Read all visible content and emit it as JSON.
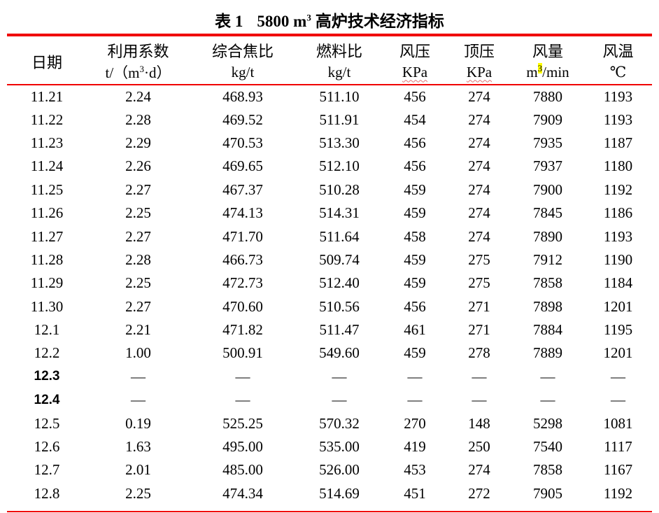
{
  "colors": {
    "rule": "#f00000",
    "highlight": "#ffff00",
    "squiggle": "#e36f6f"
  },
  "title": {
    "label": "表 1",
    "pre": "5800 m",
    "sup": "3",
    "post": "高炉技术经济指标"
  },
  "header": {
    "date": "日期",
    "cols": [
      {
        "name": "利用系数",
        "unit_pre": "t/（m",
        "unit_sup": "3",
        "unit_post": "·d）"
      },
      {
        "name": "综合焦比",
        "unit": "kg/t"
      },
      {
        "name": "燃料比",
        "unit": "kg/t"
      },
      {
        "name": "风压",
        "unit": "KPa",
        "misspelled": true
      },
      {
        "name": "顶压",
        "unit": "KPa",
        "misspelled": true
      },
      {
        "name": "风量",
        "unit_pre": "m",
        "unit_sup": "3",
        "unit_post": "/min",
        "sup_highlighted": true
      },
      {
        "name": "风温",
        "unit": "℃"
      }
    ]
  },
  "rows": [
    {
      "date": "11.21",
      "bold_date": false,
      "values": [
        "2.24",
        "468.93",
        "511.10",
        "456",
        "274",
        "7880",
        "1193"
      ]
    },
    {
      "date": "11.22",
      "bold_date": false,
      "values": [
        "2.28",
        "469.52",
        "511.91",
        "454",
        "274",
        "7909",
        "1193"
      ]
    },
    {
      "date": "11.23",
      "bold_date": false,
      "values": [
        "2.29",
        "470.53",
        "513.30",
        "456",
        "274",
        "7935",
        "1187"
      ]
    },
    {
      "date": "11.24",
      "bold_date": false,
      "values": [
        "2.26",
        "469.65",
        "512.10",
        "456",
        "274",
        "7937",
        "1180"
      ]
    },
    {
      "date": "11.25",
      "bold_date": false,
      "values": [
        "2.27",
        "467.37",
        "510.28",
        "459",
        "274",
        "7900",
        "1192"
      ]
    },
    {
      "date": "11.26",
      "bold_date": false,
      "values": [
        "2.25",
        "474.13",
        "514.31",
        "459",
        "274",
        "7845",
        "1186"
      ]
    },
    {
      "date": "11.27",
      "bold_date": false,
      "values": [
        "2.27",
        "471.70",
        "511.64",
        "458",
        "274",
        "7890",
        "1193"
      ]
    },
    {
      "date": "11.28",
      "bold_date": false,
      "values": [
        "2.28",
        "466.73",
        "509.74",
        "459",
        "275",
        "7912",
        "1190"
      ]
    },
    {
      "date": "11.29",
      "bold_date": false,
      "values": [
        "2.25",
        "472.73",
        "512.40",
        "459",
        "275",
        "7858",
        "1184"
      ]
    },
    {
      "date": "11.30",
      "bold_date": false,
      "values": [
        "2.27",
        "470.60",
        "510.56",
        "456",
        "271",
        "7898",
        "1201"
      ]
    },
    {
      "date": "12.1",
      "bold_date": false,
      "values": [
        "2.21",
        "471.82",
        "511.47",
        "461",
        "271",
        "7884",
        "1195"
      ]
    },
    {
      "date": "12.2",
      "bold_date": false,
      "values": [
        "1.00",
        "500.91",
        "549.60",
        "459",
        "278",
        "7889",
        "1201"
      ]
    },
    {
      "date": "12.3",
      "bold_date": true,
      "values": [
        "—",
        "—",
        "—",
        "—",
        "—",
        "—",
        "—"
      ]
    },
    {
      "date": "12.4",
      "bold_date": true,
      "values": [
        "—",
        "—",
        "—",
        "—",
        "—",
        "—",
        "—"
      ]
    },
    {
      "date": "12.5",
      "bold_date": false,
      "values": [
        "0.19",
        "525.25",
        "570.32",
        "270",
        "148",
        "5298",
        "1081"
      ]
    },
    {
      "date": "12.6",
      "bold_date": false,
      "values": [
        "1.63",
        "495.00",
        "535.00",
        "419",
        "250",
        "7540",
        "1117"
      ]
    },
    {
      "date": "12.7",
      "bold_date": false,
      "values": [
        "2.01",
        "485.00",
        "526.00",
        "453",
        "274",
        "7858",
        "1167"
      ]
    },
    {
      "date": "12.8",
      "bold_date": false,
      "values": [
        "2.25",
        "474.34",
        "514.69",
        "451",
        "272",
        "7905",
        "1192"
      ]
    }
  ]
}
